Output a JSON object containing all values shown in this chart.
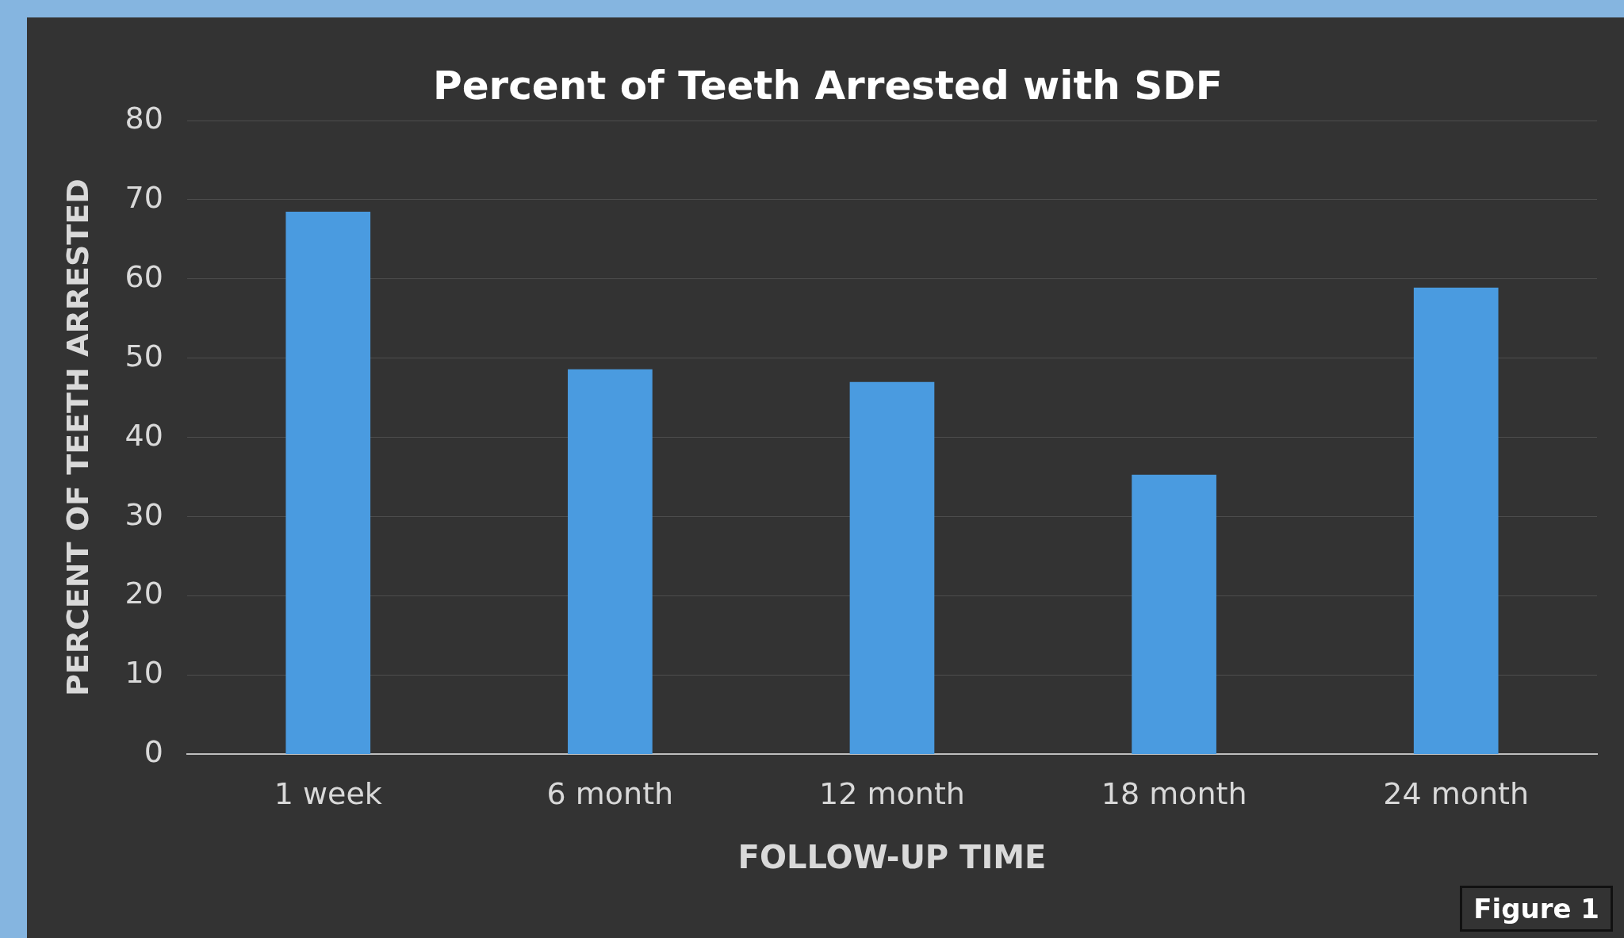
{
  "chart_data": {
    "type": "bar",
    "title": "Percent of Teeth Arrested with SDF",
    "xlabel": "FOLLOW-UP TIME",
    "ylabel": "PERCENT OF TEETH ARRESTED",
    "categories": [
      "1 week",
      "6 month",
      "12 month",
      "18 month",
      "24 month"
    ],
    "values": [
      68.5,
      48.6,
      47,
      35.3,
      58.9
    ],
    "color": "#4a9be0",
    "ylim": [
      0,
      80
    ],
    "yticks": [
      0,
      10,
      20,
      30,
      40,
      50,
      60,
      70,
      80
    ],
    "grid": "y",
    "legend": false,
    "annotations": [
      "Figure 1"
    ]
  }
}
